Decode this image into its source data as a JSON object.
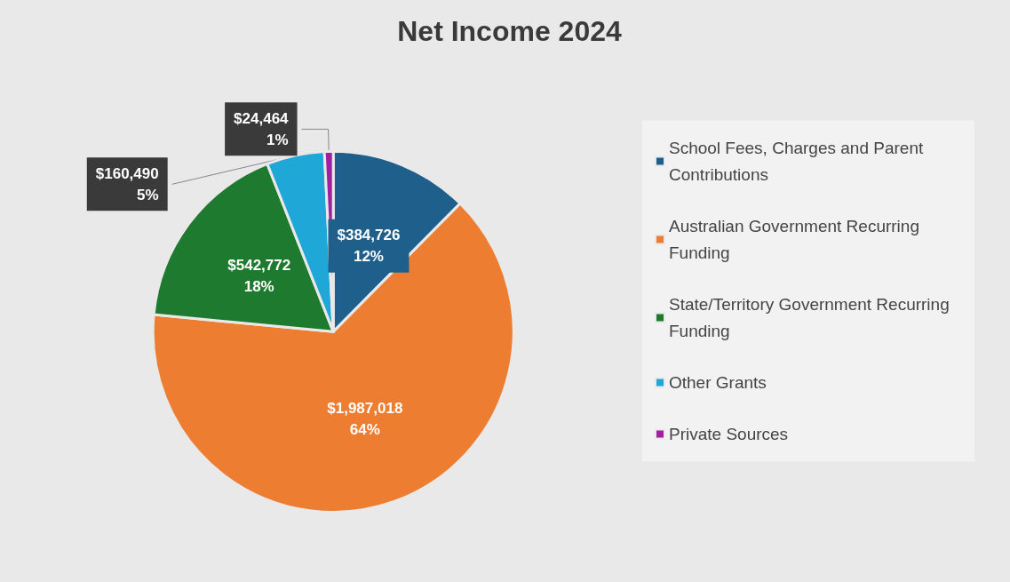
{
  "chart_data": {
    "type": "pie",
    "title": "Net Income 2024",
    "categories": [
      "School Fees, Charges and Parent Contributions",
      "Australian Government Recurring Funding",
      "State/Territory Government Recurring Funding",
      "Other Grants",
      "Private Sources"
    ],
    "values": [
      384726,
      1987018,
      542772,
      160490,
      24464
    ],
    "colors": [
      "#1f5f8b",
      "#ed7d31",
      "#1e7a2e",
      "#1fa7d8",
      "#a020a0"
    ],
    "value_labels": [
      "$384,726\n12%",
      "$1,987,018\n64%",
      "$542,772\n18%",
      "$160,490\n5%",
      "$24,464\n1%"
    ],
    "legend": "right"
  }
}
